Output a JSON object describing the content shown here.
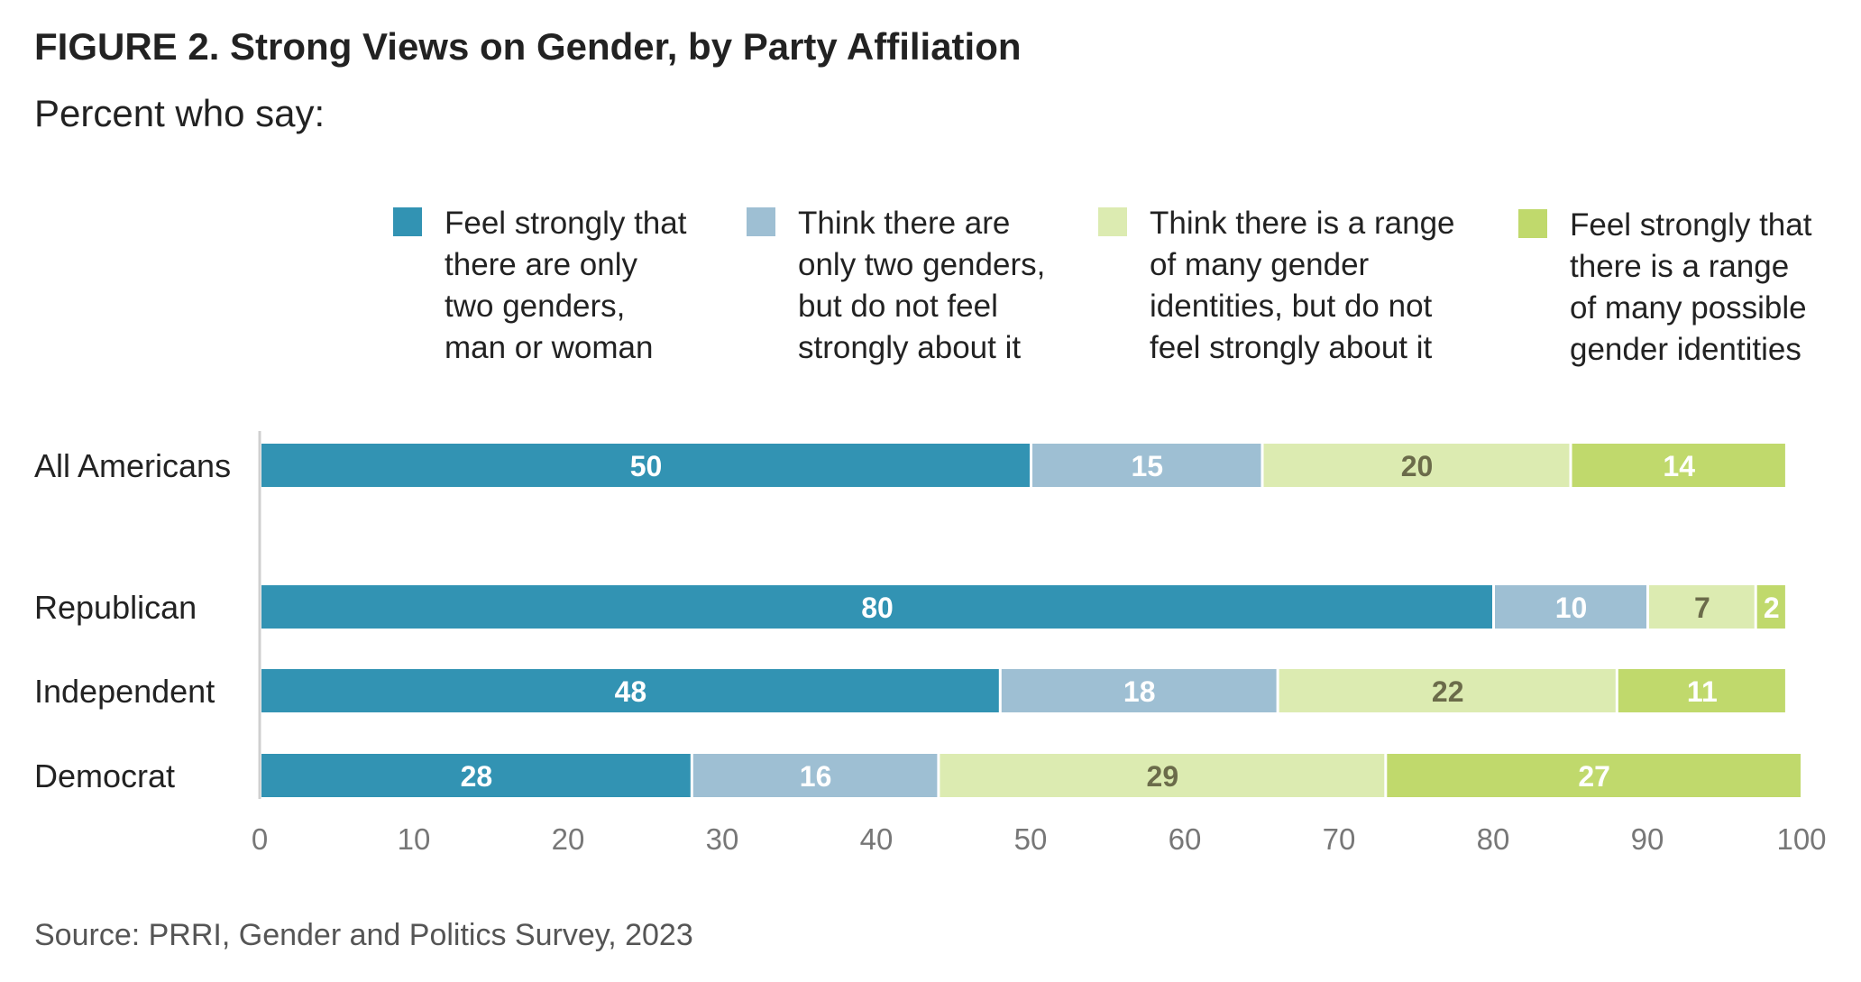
{
  "title": "FIGURE 2.  Strong Views on Gender, by Party Affiliation",
  "subtitle": "Percent who say:",
  "source": "Source: PRRI, Gender and Politics Survey, 2023",
  "chart_data": {
    "type": "bar",
    "orientation": "horizontal",
    "stacked": true,
    "categories": [
      "All Americans",
      "Republican",
      "Independent",
      "Democrat"
    ],
    "series": [
      {
        "name": "Feel strongly that there are only two genders, man or woman",
        "name_lines": [
          "Feel strongly that",
          "there are only",
          "two genders,",
          "man or woman"
        ],
        "color": "#3293b3",
        "label_color": "#ffffff",
        "values": [
          50,
          80,
          48,
          28
        ]
      },
      {
        "name": "Think there are only two genders, but do not feel strongly about it",
        "name_lines": [
          "Think there are",
          "only two genders,",
          "but do not feel",
          "strongly about it"
        ],
        "color": "#9ebfd3",
        "label_color": "#ffffff",
        "values": [
          15,
          10,
          18,
          16
        ]
      },
      {
        "name": "Think there is a range of many gender identities, but do not feel strongly about it",
        "name_lines": [
          "Think there is a range",
          "of many gender",
          "identities, but do not",
          "feel strongly about it"
        ],
        "color": "#dcebb1",
        "label_color": "#6b6b4a",
        "values": [
          20,
          7,
          22,
          29
        ]
      },
      {
        "name": "Feel strongly that there is a range of many possible gender identities",
        "name_lines": [
          "Feel strongly that",
          "there is a range",
          "of many possible",
          "gender identities"
        ],
        "color": "#c0d96c",
        "label_color": "#ffffff",
        "values": [
          14,
          2,
          11,
          27
        ]
      }
    ],
    "xlim": [
      0,
      100
    ],
    "xticks": [
      0,
      10,
      20,
      30,
      40,
      50,
      60,
      70,
      80,
      90,
      100
    ],
    "grid": false,
    "legend_position": "top"
  }
}
